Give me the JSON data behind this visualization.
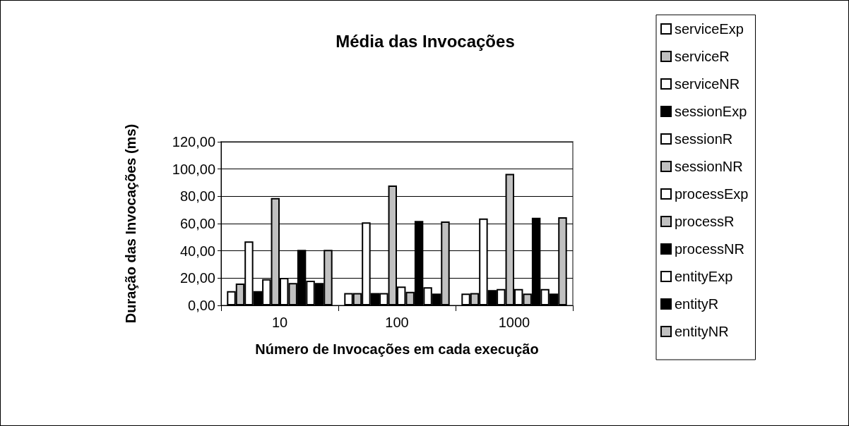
{
  "chart_data": {
    "type": "bar",
    "title": "Média das Invocações",
    "xlabel": "Número de Invocações em cada execução",
    "ylabel": "Duração das Invocações (ms)",
    "categories": [
      "10",
      "100",
      "1000"
    ],
    "series": [
      {
        "name": "serviceExp",
        "color": "#ffffff",
        "values": [
          10.5,
          9,
          8.6
        ]
      },
      {
        "name": "serviceR",
        "color": "#c0c0c0",
        "values": [
          16,
          9,
          9
        ]
      },
      {
        "name": "serviceNR",
        "color": "#ffffff",
        "values": [
          47,
          60.9,
          63.8
        ]
      },
      {
        "name": "sessionExp",
        "color": "#000000",
        "values": [
          10.5,
          9,
          11.2
        ]
      },
      {
        "name": "sessionR",
        "color": "#ffffff",
        "values": [
          19.3,
          9,
          12
        ]
      },
      {
        "name": "sessionNR",
        "color": "#c0c0c0",
        "values": [
          78.8,
          87.9,
          96.5
        ]
      },
      {
        "name": "processExp",
        "color": "#ffffff",
        "values": [
          20.2,
          13.8,
          12
        ]
      },
      {
        "name": "processR",
        "color": "#c0c0c0",
        "values": [
          16.4,
          10,
          8.6
        ]
      },
      {
        "name": "processNR",
        "color": "#000000",
        "values": [
          40.7,
          62,
          64.3
        ]
      },
      {
        "name": "entityExp",
        "color": "#ffffff",
        "values": [
          18.1,
          13.3,
          12
        ]
      },
      {
        "name": "entityR",
        "color": "#000000",
        "values": [
          16.4,
          8.6,
          8.6
        ]
      },
      {
        "name": "entityNR",
        "color": "#c0c0c0",
        "values": [
          40.7,
          61.5,
          64.7
        ]
      }
    ],
    "ylim": [
      0,
      120
    ],
    "yticks": [
      {
        "value": 0,
        "label": "0,00"
      },
      {
        "value": 20,
        "label": "20,00"
      },
      {
        "value": 40,
        "label": "40,00"
      },
      {
        "value": 60,
        "label": "60,00"
      },
      {
        "value": 80,
        "label": "80,00"
      },
      {
        "value": 100,
        "label": "100,00"
      },
      {
        "value": 120,
        "label": "120,00"
      }
    ],
    "grid": "y",
    "legend": "right"
  }
}
